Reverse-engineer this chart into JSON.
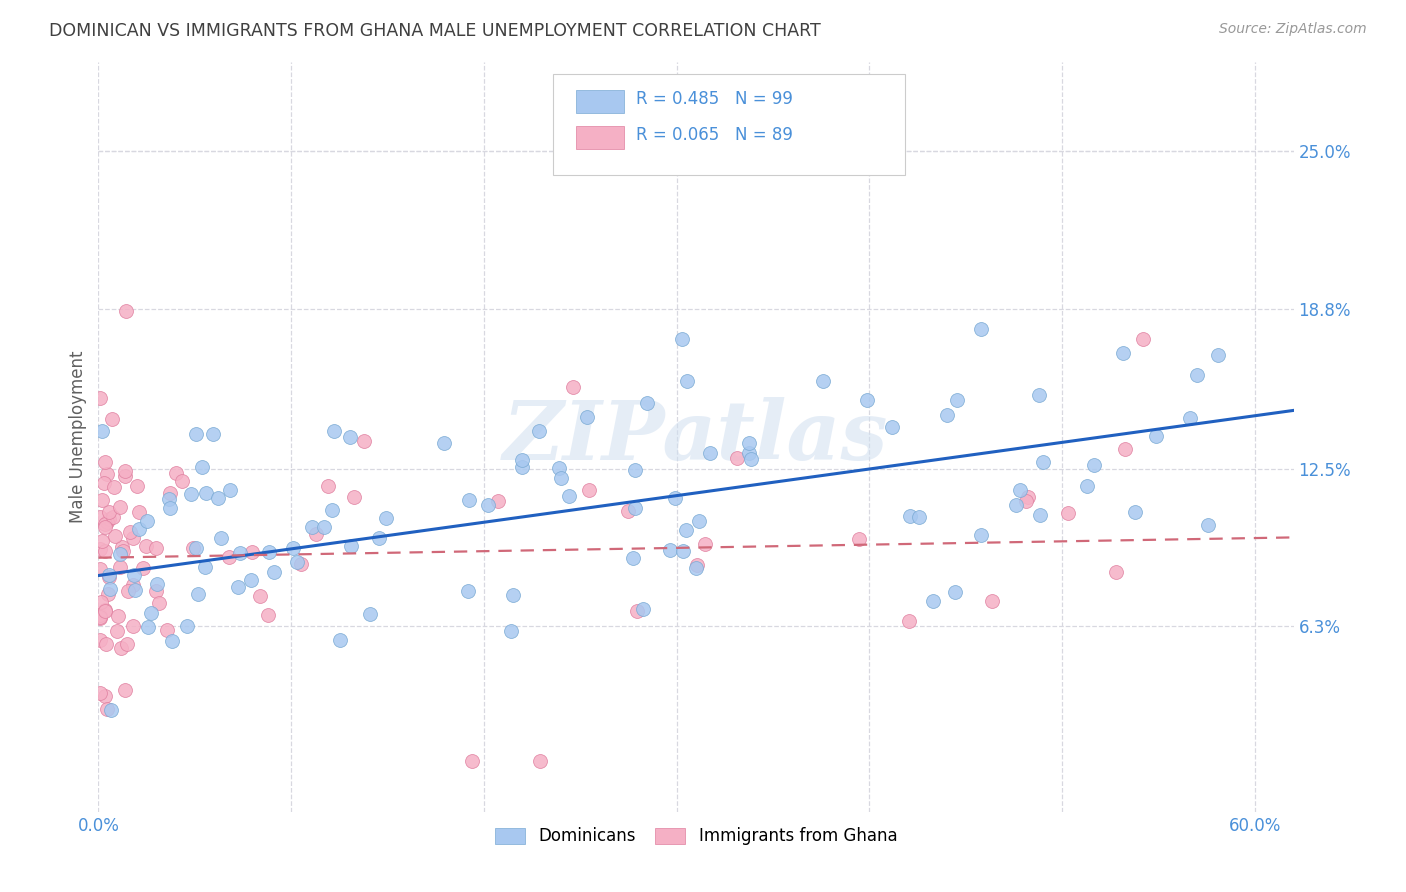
{
  "title": "DOMINICAN VS IMMIGRANTS FROM GHANA MALE UNEMPLOYMENT CORRELATION CHART",
  "source": "Source: ZipAtlas.com",
  "ylabel": "Male Unemployment",
  "xlabel_ticks": [
    "0.0%",
    "",
    "",
    "",
    "",
    "",
    "60.0%"
  ],
  "xlabel_vals": [
    0.0,
    0.1,
    0.2,
    0.3,
    0.4,
    0.5,
    0.6
  ],
  "ytick_labels": [
    "25.0%",
    "18.8%",
    "12.5%",
    "6.3%"
  ],
  "ytick_vals": [
    0.25,
    0.188,
    0.125,
    0.063
  ],
  "xmin": 0.0,
  "xmax": 0.62,
  "ymin": -0.01,
  "ymax": 0.285,
  "dom_trend_x0": 0.0,
  "dom_trend_y0": 0.083,
  "dom_trend_x1": 0.62,
  "dom_trend_y1": 0.148,
  "gha_trend_x0": 0.0,
  "gha_trend_y0": 0.09,
  "gha_trend_x1": 0.62,
  "gha_trend_y1": 0.098,
  "dominican_R": 0.485,
  "dominican_N": 99,
  "ghana_R": 0.065,
  "ghana_N": 89,
  "watermark": "ZIPatlas",
  "dot_size": 100,
  "dominican_color": "#a8c8f0",
  "dominican_edge": "#7aaad4",
  "ghana_color": "#f5b0c5",
  "ghana_edge": "#e080a0",
  "trendline_dominican_color": "#2060c0",
  "trendline_ghana_color": "#d06878",
  "background_color": "#ffffff",
  "grid_color": "#d8d8e0",
  "axis_label_color": "#4a90d9",
  "title_color": "#404040"
}
